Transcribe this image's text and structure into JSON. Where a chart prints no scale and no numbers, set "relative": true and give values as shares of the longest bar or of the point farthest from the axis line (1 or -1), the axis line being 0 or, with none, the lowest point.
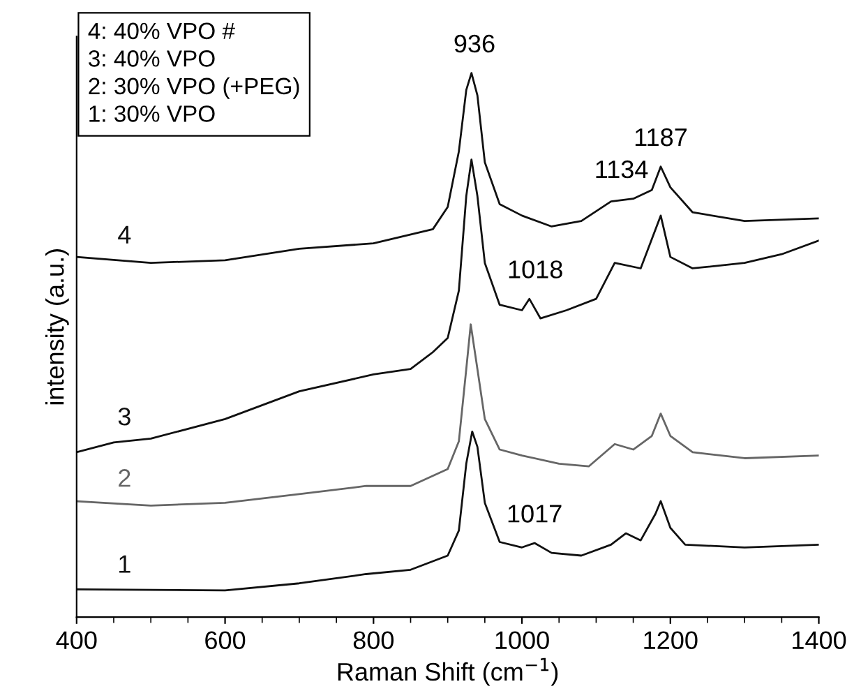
{
  "chart_data": {
    "type": "line",
    "relative": true,
    "xlabel": "Raman Shift (cm$^{−1}$)",
    "ylabel": "intensity (a.u.)",
    "xlim": [
      400,
      1400
    ],
    "xticks": [
      400,
      600,
      800,
      1000,
      1200,
      1400
    ],
    "legend": false,
    "grid": false,
    "marker": "none",
    "line_style": "solid",
    "series": [
      {
        "name": "1",
        "color": "#111111",
        "x": [
          400,
          600,
          700,
          790,
          850,
          900,
          915,
          925,
          933,
          940,
          950,
          970,
          1000,
          1017,
          1040,
          1080,
          1120,
          1140,
          1160,
          1180,
          1187,
          1200,
          1220,
          1300,
          1400
        ],
        "values": [
          0.051,
          0.049,
          0.062,
          0.079,
          0.087,
          0.113,
          0.159,
          0.282,
          0.341,
          0.313,
          0.21,
          0.138,
          0.128,
          0.136,
          0.118,
          0.113,
          0.133,
          0.154,
          0.141,
          0.19,
          0.213,
          0.164,
          0.133,
          0.128,
          0.133
        ]
      },
      {
        "name": "2",
        "color": "#666666",
        "x": [
          400,
          500,
          600,
          700,
          790,
          850,
          900,
          915,
          925,
          931,
          940,
          950,
          970,
          1000,
          1050,
          1090,
          1125,
          1150,
          1175,
          1187,
          1200,
          1230,
          1300,
          1400
        ],
        "values": [
          0.213,
          0.205,
          0.21,
          0.226,
          0.241,
          0.241,
          0.272,
          0.323,
          0.456,
          0.538,
          0.456,
          0.364,
          0.308,
          0.297,
          0.282,
          0.277,
          0.318,
          0.308,
          0.333,
          0.374,
          0.333,
          0.303,
          0.292,
          0.297
        ]
      },
      {
        "name": "3",
        "color": "#111111",
        "x": [
          400,
          450,
          500,
          600,
          700,
          800,
          850,
          880,
          900,
          915,
          925,
          932,
          940,
          950,
          970,
          1000,
          1010,
          1025,
          1060,
          1100,
          1125,
          1160,
          1187,
          1200,
          1230,
          1300,
          1350,
          1400
        ],
        "values": [
          0.303,
          0.321,
          0.328,
          0.364,
          0.415,
          0.446,
          0.456,
          0.487,
          0.513,
          0.6,
          0.774,
          0.841,
          0.774,
          0.651,
          0.574,
          0.564,
          0.585,
          0.549,
          0.564,
          0.585,
          0.651,
          0.641,
          0.738,
          0.662,
          0.641,
          0.651,
          0.667,
          0.692
        ]
      },
      {
        "name": "4",
        "color": "#111111",
        "x": [
          400,
          500,
          600,
          700,
          800,
          880,
          900,
          915,
          925,
          932,
          940,
          950,
          970,
          1000,
          1040,
          1080,
          1120,
          1150,
          1175,
          1187,
          1200,
          1230,
          1300,
          1400
        ],
        "values": [
          0.662,
          0.651,
          0.656,
          0.677,
          0.687,
          0.713,
          0.754,
          0.856,
          0.969,
          1.0,
          0.959,
          0.836,
          0.759,
          0.738,
          0.718,
          0.728,
          0.764,
          0.769,
          0.785,
          0.828,
          0.79,
          0.744,
          0.728,
          0.733
        ]
      }
    ],
    "annotations": [
      {
        "text": "936",
        "x": 936,
        "y": 1.0
      },
      {
        "text": "1134",
        "x": 1134,
        "y": 0.769
      },
      {
        "text": "1187",
        "x": 1187,
        "y": 0.828
      },
      {
        "text": "1018",
        "x": 1018,
        "y": 0.585
      },
      {
        "text": "1017",
        "x": 1017,
        "y": 0.136
      },
      "4: 40% VPO #\n3: 40% VPO\n2: 30% VPO (+PEG)\n1: 30% VPO"
    ]
  }
}
